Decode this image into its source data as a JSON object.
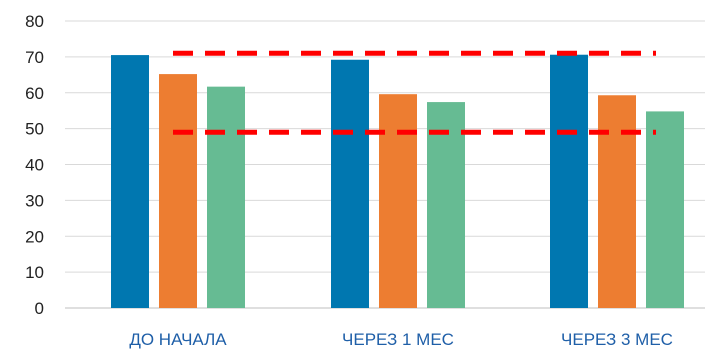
{
  "chart_data": {
    "type": "bar",
    "title": "",
    "xlabel": "",
    "ylabel": "",
    "categories": [
      "ДО НАЧАЛА",
      "ЧЕРЕЗ 1 МЕС",
      "ЧЕРЕЗ 3 МЕС"
    ],
    "series": [
      {
        "color": "#0077B0",
        "values": [
          70.5,
          69.2,
          70.6
        ]
      },
      {
        "color": "#ED7D31",
        "values": [
          65.2,
          59.6,
          59.3
        ]
      },
      {
        "color": "#66BB93",
        "values": [
          61.7,
          57.4,
          54.8
        ]
      }
    ],
    "ylim": [
      0,
      80
    ],
    "yticks": [
      "0",
      "10",
      "20",
      "30",
      "40",
      "50",
      "60",
      "70",
      "80"
    ],
    "grid": true,
    "legend": "none",
    "reference_lines": [
      {
        "y": 71,
        "color": "#FF0000",
        "style": "dashed"
      },
      {
        "y": 49,
        "color": "#FF0000",
        "style": "dashed"
      }
    ]
  }
}
